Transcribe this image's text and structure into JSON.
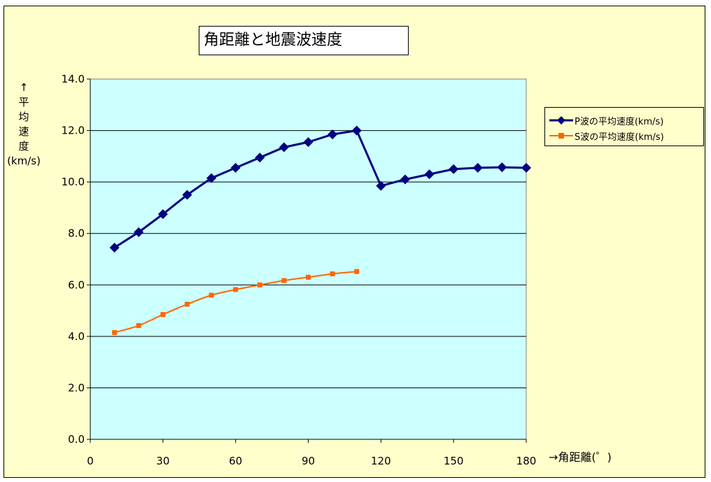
{
  "chart_data": {
    "type": "line",
    "title": "角距離と地震波速度",
    "xlabel": "→角距離(゜)",
    "ylabel_lines": [
      "↑",
      "平",
      "均",
      "速",
      "度",
      "(km/s)"
    ],
    "xlim": [
      0,
      180
    ],
    "ylim": [
      0,
      14
    ],
    "x_ticks": [
      0,
      30,
      60,
      90,
      120,
      150,
      180
    ],
    "y_ticks": [
      0,
      2,
      4,
      6,
      8,
      10,
      12,
      14
    ],
    "y_tick_labels": [
      "0.0",
      "2.0",
      "4.0",
      "6.0",
      "8.0",
      "10.0",
      "12.0",
      "14.0"
    ],
    "grid": "horizontal",
    "legend_position": "right",
    "plot_background": "#ccffff",
    "frame_background": "#ffffcc",
    "series": [
      {
        "name": "P波の平均速度(km/s)",
        "color": "#000080",
        "marker": "diamond",
        "x": [
          10,
          20,
          30,
          40,
          50,
          60,
          70,
          80,
          90,
          100,
          110,
          120,
          130,
          140,
          150,
          160,
          170,
          180
        ],
        "y": [
          7.45,
          8.05,
          8.75,
          9.5,
          10.15,
          10.55,
          10.95,
          11.35,
          11.55,
          11.85,
          12.0,
          9.85,
          10.1,
          10.3,
          10.5,
          10.55,
          10.57,
          10.55
        ]
      },
      {
        "name": "S波の平均速度(km/s)",
        "color": "#ff6600",
        "marker": "square",
        "x": [
          10,
          20,
          30,
          40,
          50,
          60,
          70,
          80,
          90,
          100,
          110
        ],
        "y": [
          4.15,
          4.42,
          4.85,
          5.25,
          5.6,
          5.82,
          6.0,
          6.17,
          6.3,
          6.43,
          6.52
        ]
      }
    ]
  }
}
